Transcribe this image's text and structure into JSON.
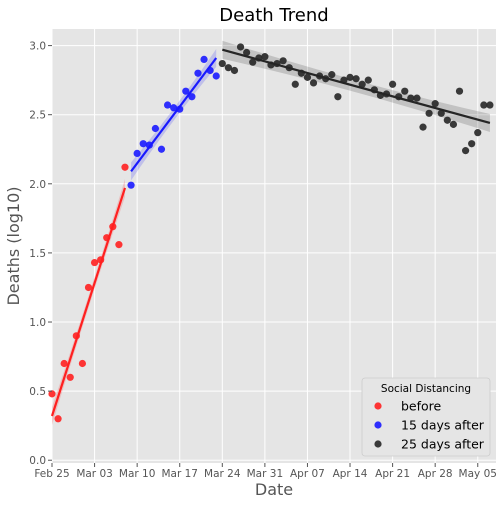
{
  "chart_data": {
    "type": "scatter",
    "title": "Death Trend",
    "xlabel": "Date",
    "ylabel": "Deaths (log10)",
    "x_tick_labels": [
      "Feb 25",
      "Mar 03",
      "Mar 10",
      "Mar 17",
      "Mar 24",
      "Mar 31",
      "Apr 07",
      "Apr 14",
      "Apr 21",
      "Apr 28",
      "May 05"
    ],
    "y_tick_labels": [
      "0.0",
      "0.5",
      "1.0",
      "1.5",
      "2.0",
      "2.5",
      "3.0"
    ],
    "xlim": [
      "2020-02-25",
      "2020-05-08"
    ],
    "ylim": [
      -0.02,
      3.12
    ],
    "grid": true,
    "legend": {
      "title": "Social Distancing",
      "placement": "lower-right"
    },
    "series": [
      {
        "name": "before",
        "color": "#ff2020",
        "x": [
          "2020-02-25",
          "2020-02-26",
          "2020-02-27",
          "2020-02-28",
          "2020-02-29",
          "2020-03-01",
          "2020-03-02",
          "2020-03-03",
          "2020-03-04",
          "2020-03-05",
          "2020-03-06",
          "2020-03-07",
          "2020-03-08"
        ],
        "y": [
          0.48,
          0.3,
          0.7,
          0.6,
          0.9,
          0.7,
          1.25,
          1.43,
          1.45,
          1.61,
          1.69,
          1.56,
          2.12
        ],
        "fit": {
          "start": [
            "2020-02-25",
            0.32
          ],
          "end": [
            "2020-03-08",
            1.97
          ]
        }
      },
      {
        "name": "15 days after",
        "color": "#1a1aff",
        "x": [
          "2020-03-09",
          "2020-03-10",
          "2020-03-11",
          "2020-03-12",
          "2020-03-13",
          "2020-03-14",
          "2020-03-15",
          "2020-03-16",
          "2020-03-17",
          "2020-03-18",
          "2020-03-19",
          "2020-03-20",
          "2020-03-21",
          "2020-03-22",
          "2020-03-23"
        ],
        "y": [
          1.99,
          2.22,
          2.29,
          2.28,
          2.4,
          2.25,
          2.57,
          2.55,
          2.54,
          2.67,
          2.63,
          2.8,
          2.9,
          2.82,
          2.78
        ],
        "fit": {
          "start": [
            "2020-03-09",
            2.09
          ],
          "end": [
            "2020-03-23",
            2.91
          ]
        }
      },
      {
        "name": "25 days after",
        "color": "#262626",
        "x": [
          "2020-03-24",
          "2020-03-25",
          "2020-03-26",
          "2020-03-27",
          "2020-03-28",
          "2020-03-29",
          "2020-03-30",
          "2020-03-31",
          "2020-04-01",
          "2020-04-02",
          "2020-04-03",
          "2020-04-04",
          "2020-04-05",
          "2020-04-06",
          "2020-04-07",
          "2020-04-08",
          "2020-04-09",
          "2020-04-10",
          "2020-04-11",
          "2020-04-12",
          "2020-04-13",
          "2020-04-14",
          "2020-04-15",
          "2020-04-16",
          "2020-04-17",
          "2020-04-18",
          "2020-04-19",
          "2020-04-20",
          "2020-04-21",
          "2020-04-22",
          "2020-04-23",
          "2020-04-24",
          "2020-04-25",
          "2020-04-26",
          "2020-04-27",
          "2020-04-28",
          "2020-04-29",
          "2020-04-30",
          "2020-05-01",
          "2020-05-02",
          "2020-05-03",
          "2020-05-04",
          "2020-05-05",
          "2020-05-06",
          "2020-05-07"
        ],
        "y": [
          2.87,
          2.84,
          2.82,
          2.99,
          2.95,
          2.88,
          2.91,
          2.92,
          2.86,
          2.87,
          2.89,
          2.84,
          2.72,
          2.8,
          2.77,
          2.73,
          2.78,
          2.76,
          2.79,
          2.63,
          2.75,
          2.77,
          2.76,
          2.72,
          2.75,
          2.68,
          2.64,
          2.65,
          2.72,
          2.63,
          2.67,
          2.62,
          2.62,
          2.41,
          2.51,
          2.58,
          2.51,
          2.46,
          2.43,
          2.67,
          2.24,
          2.29,
          2.37,
          2.57,
          2.57
        ],
        "fit": {
          "start": [
            "2020-03-24",
            2.97
          ],
          "end": [
            "2020-05-07",
            2.44
          ]
        }
      }
    ]
  }
}
